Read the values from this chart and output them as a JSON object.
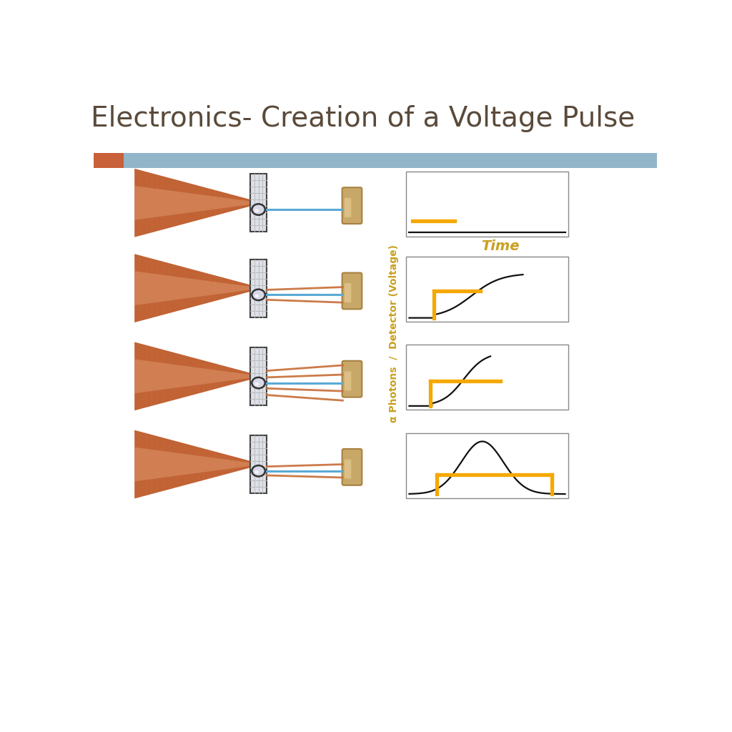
{
  "title": "Electronics- Creation of a Voltage Pulse",
  "title_color": "#5a4a3a",
  "title_fontsize": 28,
  "bg_color": "#ffffff",
  "header_bar_color": "#7fa8c0",
  "header_orange_color": "#c8603a",
  "beam_color_light": "#e8a880",
  "beam_color_dark": "#c06030",
  "blue_line_color": "#5baad4",
  "orange_line_color": "#c8703a",
  "grid_color": "#bbbbbb",
  "panel_face": "#dde0e8",
  "detector_color_main": "#c8a868",
  "detector_color_light": "#e8d098",
  "detector_color_dark": "#a88040",
  "pulse_orange": "#f5a800",
  "pulse_black": "#111111",
  "y_label_color": "#c8a020",
  "time_label_color": "#c8a020",
  "axis_label": "α Photons  /  Detector (Voltage)",
  "time_label": "Time",
  "rows": 4
}
